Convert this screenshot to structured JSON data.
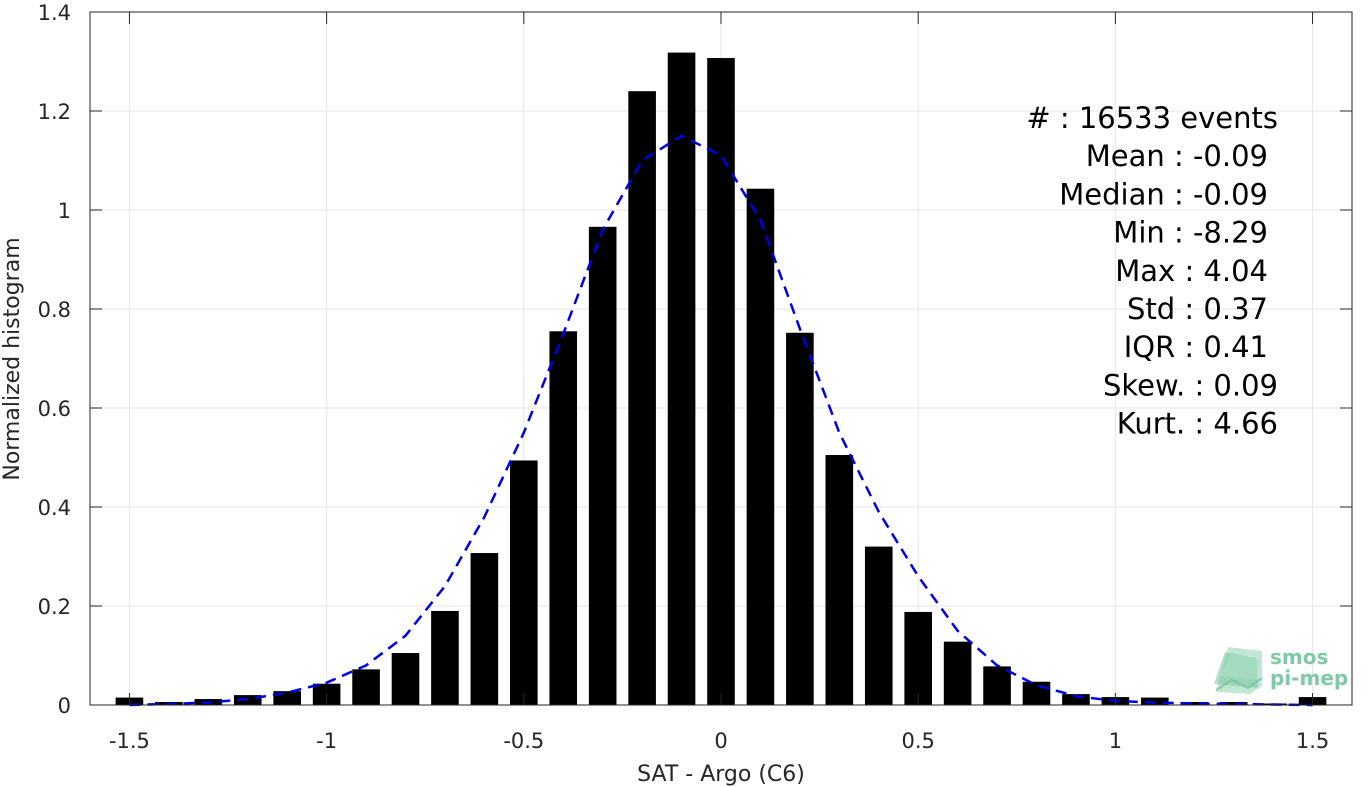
{
  "chart_data": {
    "type": "bar",
    "xlabel": "SAT - Argo (C6)",
    "ylabel": "Normalized histogram",
    "xlim": [
      -1.6,
      1.6
    ],
    "ylim": [
      0,
      1.4
    ],
    "xticks": [
      -1.5,
      -1,
      -0.5,
      0,
      0.5,
      1,
      1.5
    ],
    "xtick_labels": [
      "-1.5",
      "-1",
      "-0.5",
      "0",
      "0.5",
      "1",
      "1.5"
    ],
    "yticks": [
      0,
      0.2,
      0.4,
      0.6,
      0.8,
      1,
      1.2,
      1.4
    ],
    "ytick_labels": [
      "0",
      "0.2",
      "0.4",
      "0.6",
      "0.8",
      "1",
      "1.2",
      "1.4"
    ],
    "grid": true,
    "bar_color": "#000000",
    "bar_width": 0.07,
    "bars": {
      "x": [
        -1.5,
        -1.4,
        -1.3,
        -1.2,
        -1.1,
        -1.0,
        -0.9,
        -0.8,
        -0.7,
        -0.6,
        -0.5,
        -0.4,
        -0.3,
        -0.2,
        -0.1,
        0.0,
        0.1,
        0.2,
        0.3,
        0.4,
        0.5,
        0.6,
        0.7,
        0.8,
        0.9,
        1.0,
        1.1,
        1.2,
        1.3,
        1.4,
        1.5
      ],
      "values": [
        0.015,
        0.006,
        0.012,
        0.02,
        0.028,
        0.043,
        0.072,
        0.105,
        0.19,
        0.307,
        0.494,
        0.755,
        0.966,
        1.24,
        1.318,
        1.307,
        1.043,
        0.752,
        0.505,
        0.32,
        0.188,
        0.128,
        0.078,
        0.047,
        0.022,
        0.016,
        0.015,
        0.006,
        0.006,
        0.003,
        0.016
      ]
    },
    "fit_curve": {
      "style": "dashed",
      "color": "#0000e6",
      "x": [
        -1.5,
        -1.4,
        -1.3,
        -1.2,
        -1.1,
        -1.0,
        -0.9,
        -0.8,
        -0.7,
        -0.6,
        -0.5,
        -0.4,
        -0.3,
        -0.2,
        -0.1,
        0.0,
        0.1,
        0.2,
        0.3,
        0.4,
        0.5,
        0.6,
        0.7,
        0.8,
        0.9,
        1.0,
        1.1,
        1.2,
        1.3,
        1.4,
        1.5
      ],
      "y": [
        0.0,
        0.002,
        0.005,
        0.012,
        0.025,
        0.045,
        0.08,
        0.14,
        0.24,
        0.38,
        0.55,
        0.75,
        0.96,
        1.1,
        1.15,
        1.11,
        0.98,
        0.76,
        0.55,
        0.39,
        0.26,
        0.15,
        0.08,
        0.04,
        0.018,
        0.008,
        0.005,
        0.003,
        0.002,
        0.001,
        0.0
      ]
    },
    "annotations": [
      "#  : 16533 events",
      "Mean : -0.09",
      "Median : -0.09",
      "Min : -8.29",
      "Max : 4.04",
      "Std : 0.37",
      "IQR : 0.41",
      "Skew. : 0.09",
      "Kurt. : 4.66"
    ]
  },
  "logo": {
    "line1": "smos",
    "line2": "pi-mep",
    "color": "#7fc9a6"
  }
}
